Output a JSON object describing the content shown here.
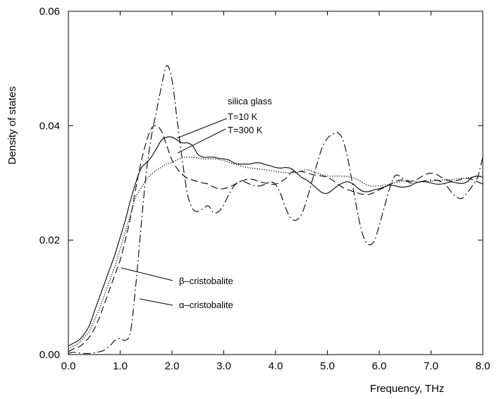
{
  "chart_data": {
    "type": "line",
    "xlabel": "Frequency, THz",
    "ylabel": "Density of states",
    "xlim": [
      0,
      8
    ],
    "ylim": [
      0,
      0.06
    ],
    "x_ticks": [
      "0.0",
      "1.0",
      "2.0",
      "3.0",
      "4.0",
      "5.0",
      "6.0",
      "7.0",
      "8.0"
    ],
    "y_ticks": [
      "0.00",
      "0.02",
      "0.04",
      "0.06"
    ],
    "grid": false,
    "annotations": {
      "silica_glass": "silica glass",
      "t10": "T=10 K",
      "t300": "T=300 K",
      "beta": "β–cristobalite",
      "alpha": "α–cristobalite"
    },
    "series": [
      {
        "key": "silica_t10",
        "style": "solid",
        "x": [
          0.0,
          0.1,
          0.2,
          0.3,
          0.4,
          0.5,
          0.6,
          0.7,
          0.8,
          0.9,
          1.0,
          1.1,
          1.2,
          1.3,
          1.4,
          1.5,
          1.6,
          1.7,
          1.8,
          1.9,
          2.0,
          2.1,
          2.2,
          2.3,
          2.4,
          2.5,
          2.6,
          2.7,
          2.8,
          2.9,
          3.0,
          3.1,
          3.2,
          3.3,
          3.4,
          3.5,
          3.6,
          3.7,
          3.8,
          3.9,
          4.0,
          4.1,
          4.2,
          4.3,
          4.4,
          4.5,
          4.6,
          4.7,
          4.8,
          4.9,
          5.0,
          5.1,
          5.2,
          5.3,
          5.4,
          5.5,
          5.6,
          5.7,
          5.8,
          5.9,
          6.0,
          6.1,
          6.2,
          6.3,
          6.4,
          6.5,
          6.6,
          6.7,
          6.8,
          6.9,
          7.0,
          7.1,
          7.2,
          7.3,
          7.4,
          7.5,
          7.6,
          7.7,
          7.8,
          7.9,
          8.0
        ],
        "y": [
          0.0015,
          0.002,
          0.0025,
          0.0035,
          0.005,
          0.0075,
          0.01,
          0.0125,
          0.015,
          0.0175,
          0.0205,
          0.0235,
          0.027,
          0.03,
          0.0325,
          0.0335,
          0.0345,
          0.036,
          0.0375,
          0.038,
          0.038,
          0.0375,
          0.037,
          0.037,
          0.0365,
          0.035,
          0.0345,
          0.0345,
          0.0345,
          0.0343,
          0.0342,
          0.034,
          0.0335,
          0.0333,
          0.0333,
          0.0333,
          0.0335,
          0.0335,
          0.0332,
          0.033,
          0.0327,
          0.0326,
          0.0327,
          0.0325,
          0.0318,
          0.031,
          0.0305,
          0.0298,
          0.029,
          0.0283,
          0.0282,
          0.0288,
          0.0295,
          0.03,
          0.0302,
          0.0298,
          0.029,
          0.0285,
          0.0285,
          0.0288,
          0.029,
          0.0293,
          0.0296,
          0.0295,
          0.0293,
          0.0293,
          0.0295,
          0.03,
          0.0302,
          0.0302,
          0.03,
          0.0298,
          0.0298,
          0.03,
          0.0302,
          0.03,
          0.0299,
          0.0302,
          0.031,
          0.0312,
          0.031
        ]
      },
      {
        "key": "silica_t300",
        "style": "dotted",
        "x": [
          0.0,
          0.1,
          0.2,
          0.3,
          0.4,
          0.5,
          0.6,
          0.7,
          0.8,
          0.9,
          1.0,
          1.1,
          1.2,
          1.3,
          1.4,
          1.5,
          1.6,
          1.7,
          1.8,
          1.9,
          2.0,
          2.2,
          2.4,
          2.6,
          2.8,
          3.0,
          3.2,
          3.4,
          3.6,
          3.8,
          4.0,
          4.2,
          4.4,
          4.6,
          4.8,
          5.0,
          5.2,
          5.4,
          5.6,
          5.8,
          6.0,
          6.2,
          6.4,
          6.6,
          6.8,
          7.0,
          7.2,
          7.4,
          7.6,
          7.8,
          8.0
        ],
        "y": [
          0.001,
          0.0015,
          0.002,
          0.003,
          0.004,
          0.006,
          0.008,
          0.0105,
          0.013,
          0.0155,
          0.0185,
          0.0215,
          0.0245,
          0.0275,
          0.029,
          0.0305,
          0.0315,
          0.0322,
          0.0328,
          0.0333,
          0.0336,
          0.0344,
          0.0345,
          0.0342,
          0.0342,
          0.0339,
          0.0333,
          0.0328,
          0.0325,
          0.0323,
          0.032,
          0.0318,
          0.0318,
          0.0323,
          0.0317,
          0.0312,
          0.0312,
          0.0311,
          0.0305,
          0.0295,
          0.0295,
          0.0298,
          0.0302,
          0.0303,
          0.0302,
          0.0303,
          0.0305,
          0.0306,
          0.0308,
          0.031,
          0.0312
        ]
      },
      {
        "key": "beta_cristobalite",
        "style": "dashed",
        "x": [
          0.0,
          0.1,
          0.2,
          0.3,
          0.4,
          0.5,
          0.6,
          0.7,
          0.8,
          0.9,
          1.0,
          1.1,
          1.2,
          1.3,
          1.4,
          1.5,
          1.6,
          1.7,
          1.8,
          1.9,
          2.0,
          2.1,
          2.2,
          2.3,
          2.4,
          2.5,
          2.6,
          2.7,
          2.8,
          2.9,
          3.0,
          3.1,
          3.2,
          3.3,
          3.4,
          3.5,
          3.6,
          3.7,
          3.8,
          3.9,
          4.0,
          4.1,
          4.2,
          4.3,
          4.4,
          4.5,
          4.6,
          4.7,
          4.8,
          4.9,
          5.0,
          5.1,
          5.2,
          5.3,
          5.4,
          5.5,
          5.6,
          5.7,
          5.8,
          5.9,
          6.0,
          6.1,
          6.2,
          6.3,
          6.4,
          6.5,
          6.6,
          6.7,
          6.8,
          6.9,
          7.0,
          7.1,
          7.2,
          7.3,
          7.4,
          7.5,
          7.6,
          7.7,
          7.8,
          7.9,
          8.0
        ],
        "y": [
          0.0005,
          0.001,
          0.0013,
          0.002,
          0.003,
          0.0045,
          0.0065,
          0.009,
          0.0115,
          0.014,
          0.0165,
          0.02,
          0.024,
          0.029,
          0.0335,
          0.037,
          0.0395,
          0.04,
          0.039,
          0.0365,
          0.034,
          0.0325,
          0.0315,
          0.0308,
          0.0305,
          0.0302,
          0.03,
          0.0298,
          0.0293,
          0.029,
          0.029,
          0.0293,
          0.0297,
          0.0302,
          0.0305,
          0.0307,
          0.0305,
          0.0302,
          0.03,
          0.0298,
          0.0298,
          0.0302,
          0.0308,
          0.0318,
          0.032,
          0.032,
          0.0318,
          0.0315,
          0.0313,
          0.0312,
          0.031,
          0.0305,
          0.0298,
          0.0292,
          0.0288,
          0.0285,
          0.0282,
          0.028,
          0.028,
          0.0283,
          0.0288,
          0.0292,
          0.0297,
          0.0302,
          0.0305,
          0.0305,
          0.0303,
          0.0305,
          0.031,
          0.0315,
          0.0317,
          0.0315,
          0.031,
          0.0305,
          0.0303,
          0.0304,
          0.0307,
          0.0308,
          0.0306,
          0.0302,
          0.0298
        ]
      },
      {
        "key": "alpha_cristobalite",
        "style": "dashdot",
        "x": [
          0.0,
          0.1,
          0.2,
          0.3,
          0.4,
          0.5,
          0.6,
          0.7,
          0.8,
          0.9,
          1.0,
          1.1,
          1.2,
          1.3,
          1.4,
          1.5,
          1.6,
          1.7,
          1.8,
          1.9,
          2.0,
          2.1,
          2.2,
          2.3,
          2.4,
          2.5,
          2.6,
          2.7,
          2.8,
          2.9,
          3.0,
          3.1,
          3.2,
          3.3,
          3.4,
          3.5,
          3.6,
          3.7,
          3.8,
          3.9,
          4.0,
          4.1,
          4.2,
          4.3,
          4.4,
          4.5,
          4.6,
          4.7,
          4.8,
          4.9,
          5.0,
          5.1,
          5.2,
          5.3,
          5.4,
          5.5,
          5.6,
          5.7,
          5.8,
          5.9,
          6.0,
          6.1,
          6.2,
          6.3,
          6.4,
          6.5,
          6.6,
          6.7,
          6.8,
          6.9,
          7.0,
          7.1,
          7.2,
          7.3,
          7.4,
          7.5,
          7.6,
          7.7,
          7.8,
          7.9,
          8.0
        ],
        "y": [
          0.0002,
          0.0004,
          0.0003,
          0.0002,
          0.0002,
          0.0003,
          0.0005,
          0.0008,
          0.0015,
          0.0025,
          0.0028,
          0.0025,
          0.004,
          0.012,
          0.022,
          0.0315,
          0.038,
          0.0425,
          0.047,
          0.0505,
          0.048,
          0.041,
          0.034,
          0.028,
          0.0255,
          0.025,
          0.0255,
          0.026,
          0.0248,
          0.025,
          0.0262,
          0.028,
          0.0295,
          0.0302,
          0.0302,
          0.0298,
          0.0295,
          0.0295,
          0.0298,
          0.0302,
          0.0297,
          0.028,
          0.0255,
          0.0238,
          0.0235,
          0.0245,
          0.027,
          0.0302,
          0.0333,
          0.0362,
          0.0378,
          0.0385,
          0.0388,
          0.0375,
          0.034,
          0.029,
          0.024,
          0.0205,
          0.0192,
          0.0198,
          0.0225,
          0.0258,
          0.029,
          0.0312,
          0.0312,
          0.0305,
          0.03,
          0.03,
          0.0302,
          0.0304,
          0.0305,
          0.0305,
          0.0302,
          0.0295,
          0.0283,
          0.0275,
          0.0273,
          0.0283,
          0.0295,
          0.031,
          0.0345
        ]
      }
    ]
  }
}
